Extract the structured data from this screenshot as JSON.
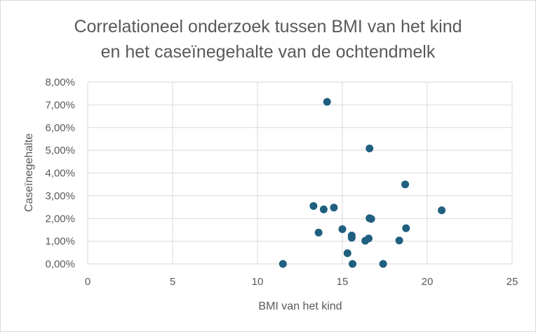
{
  "chart_data": {
    "type": "scatter",
    "title_lines": [
      "Correlationeel onderzoek tussen BMI van het kind",
      "en het caseïnegehalte van de ochtendmelk"
    ],
    "xlabel": "BMI van het kind",
    "ylabel": "Caseïnegehalte",
    "xlim": [
      0,
      25
    ],
    "ylim": [
      0,
      0.08
    ],
    "x_ticks": [
      0,
      5,
      10,
      15,
      20,
      25
    ],
    "x_tick_labels": [
      "0",
      "5",
      "10",
      "15",
      "20",
      "25"
    ],
    "y_ticks": [
      0,
      0.01,
      0.02,
      0.03,
      0.04,
      0.05,
      0.06,
      0.07,
      0.08
    ],
    "y_tick_labels": [
      "0,00%",
      "1,00%",
      "2,00%",
      "3,00%",
      "4,00%",
      "5,00%",
      "6,00%",
      "7,00%",
      "8,00%"
    ],
    "grid": true,
    "marker_color": "#1f5f7f",
    "points": [
      {
        "x": 11.5,
        "y": 0.0
      },
      {
        "x": 13.3,
        "y": 0.0255
      },
      {
        "x": 13.6,
        "y": 0.0138
      },
      {
        "x": 13.9,
        "y": 0.024
      },
      {
        "x": 14.1,
        "y": 0.0713
      },
      {
        "x": 14.5,
        "y": 0.0248
      },
      {
        "x": 15.0,
        "y": 0.0153
      },
      {
        "x": 15.3,
        "y": 0.0047
      },
      {
        "x": 15.55,
        "y": 0.0125
      },
      {
        "x": 15.55,
        "y": 0.0115
      },
      {
        "x": 15.6,
        "y": 0.0
      },
      {
        "x": 16.35,
        "y": 0.0102
      },
      {
        "x": 16.55,
        "y": 0.0112
      },
      {
        "x": 16.6,
        "y": 0.0508
      },
      {
        "x": 16.6,
        "y": 0.0201
      },
      {
        "x": 16.7,
        "y": 0.0198
      },
      {
        "x": 17.4,
        "y": 0.0
      },
      {
        "x": 18.35,
        "y": 0.0103
      },
      {
        "x": 18.7,
        "y": 0.035
      },
      {
        "x": 18.75,
        "y": 0.0157
      },
      {
        "x": 20.85,
        "y": 0.0236
      }
    ]
  }
}
